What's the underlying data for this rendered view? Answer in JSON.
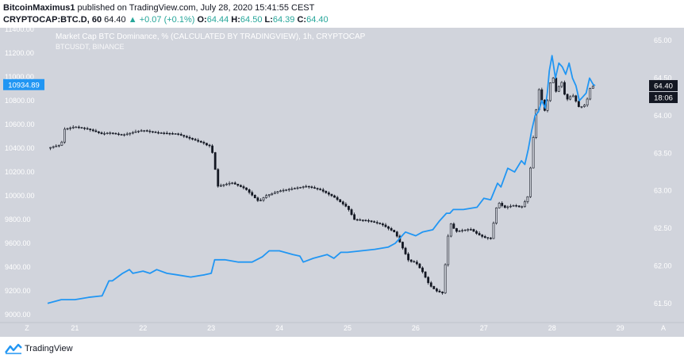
{
  "header": {
    "author": "BitcoinMaximus1",
    "published": "published on TradingView.com, July 28, 2020 15:41:55 CEST",
    "symbol": "CRYPTOCAP:BTC.D, 60",
    "last": "64.40",
    "change_arrow": "▲",
    "change": "+0.07 (+0.1%)",
    "o_label": "O:",
    "o_value": "64.44",
    "h_label": "H:",
    "h_value": "64.50",
    "l_label": "L:",
    "l_value": "64.39",
    "c_label": "C:",
    "c_value": "64.40"
  },
  "chart_data": {
    "type": "line",
    "title": "Market Cap BTC Dominance, % (CALCULATED BY TRADINGVIEW), 1h, CRYPTOCAP",
    "subtitle": "BTCUSDT, BINANCE",
    "x_ticks": [
      "21",
      "22",
      "23",
      "24",
      "25",
      "26",
      "27",
      "28",
      "29"
    ],
    "x_range": [
      20.6,
      29.4
    ],
    "left_axis": {
      "ticks": [
        "11400.00",
        "11200.00",
        "11000.00",
        "10800.00",
        "10600.00",
        "10400.00",
        "10200.00",
        "10000.00",
        "9800.00",
        "9600.00",
        "9400.00",
        "9200.00",
        "9000.00"
      ],
      "range": [
        9000,
        11400
      ]
    },
    "right_axis": {
      "ticks": [
        "65.00",
        "64.50",
        "64.00",
        "63.50",
        "63.00",
        "62.50",
        "62.00",
        "61.50"
      ],
      "range": [
        61.35,
        65.15
      ]
    },
    "labels": {
      "btc_last": "10934.89",
      "dom_last": "64.40",
      "countdown": "18:06"
    },
    "corner_labels": {
      "left": "Z",
      "right": "A"
    },
    "colors": {
      "background": "#d1d4dc",
      "dominance_line": "#2196f3",
      "candles": "#131722",
      "axis_text": "#ffffff",
      "label_blue": "#2196f3",
      "label_dark": "#131722"
    },
    "series": [
      {
        "name": "Market Cap BTC Dominance, % (CALCULATED BY TRADINGVIEW), 1h, CRYPTOCAP",
        "axis": "right",
        "x": [
          20.6,
          20.8,
          21.0,
          21.2,
          21.4,
          21.5,
          21.55,
          21.7,
          21.8,
          21.85,
          22.0,
          22.1,
          22.2,
          22.35,
          22.5,
          22.7,
          22.9,
          23.0,
          23.05,
          23.2,
          23.4,
          23.6,
          23.75,
          23.85,
          24.0,
          24.2,
          24.3,
          24.35,
          24.5,
          24.7,
          24.8,
          24.9,
          25.0,
          25.2,
          25.4,
          25.6,
          25.7,
          25.8,
          25.85,
          26.0,
          26.1,
          26.25,
          26.35,
          26.45,
          26.5,
          26.55,
          26.7,
          26.9,
          27.0,
          27.1,
          27.2,
          27.25,
          27.35,
          27.45,
          27.55,
          27.6,
          27.65,
          27.7,
          27.75,
          27.8,
          27.85,
          27.9,
          27.93,
          27.96,
          28.0,
          28.05,
          28.1,
          28.15,
          28.2,
          28.25,
          28.3,
          28.35,
          28.4,
          28.45,
          28.5,
          28.55,
          28.6,
          28.63
        ],
        "values": [
          61.5,
          61.55,
          61.55,
          61.58,
          61.6,
          61.8,
          61.8,
          61.9,
          61.95,
          61.9,
          61.93,
          61.9,
          61.95,
          61.9,
          61.88,
          61.85,
          61.88,
          61.9,
          62.08,
          62.08,
          62.05,
          62.05,
          62.12,
          62.2,
          62.2,
          62.15,
          62.13,
          62.05,
          62.1,
          62.15,
          62.1,
          62.18,
          62.18,
          62.2,
          62.22,
          62.25,
          62.3,
          62.4,
          62.45,
          62.4,
          62.45,
          62.48,
          62.6,
          62.7,
          62.7,
          62.75,
          62.75,
          62.78,
          62.9,
          62.88,
          63.1,
          63.05,
          63.3,
          63.25,
          63.4,
          63.35,
          63.55,
          63.8,
          64.0,
          64.05,
          64.2,
          64.1,
          64.3,
          64.6,
          64.8,
          64.5,
          64.7,
          64.65,
          64.55,
          64.7,
          64.5,
          64.4,
          64.2,
          64.25,
          64.3,
          64.5,
          64.42,
          64.4
        ]
      },
      {
        "name": "BTCUSDT, BINANCE",
        "axis": "left",
        "x": [
          20.6,
          20.8,
          20.85,
          21.0,
          21.2,
          21.4,
          21.5,
          21.7,
          21.9,
          22.0,
          22.2,
          22.5,
          22.7,
          22.9,
          22.95,
          23.0,
          23.1,
          23.3,
          23.5,
          23.7,
          23.8,
          24.0,
          24.2,
          24.4,
          24.6,
          24.8,
          25.0,
          25.1,
          25.3,
          25.5,
          25.7,
          25.8,
          25.9,
          26.0,
          26.1,
          26.2,
          26.3,
          26.4,
          26.45,
          26.5,
          26.55,
          26.6,
          26.8,
          26.9,
          27.0,
          27.1,
          27.2,
          27.3,
          27.45,
          27.55,
          27.65,
          27.7,
          27.8,
          27.9,
          27.95,
          28.0,
          28.05,
          28.1,
          28.15,
          28.2,
          28.3,
          28.4,
          28.5,
          28.55,
          28.6,
          28.63
        ],
        "values": [
          10400,
          10430,
          10560,
          10580,
          10560,
          10520,
          10530,
          10510,
          10540,
          10550,
          10530,
          10520,
          10480,
          10440,
          10420,
          10420,
          10080,
          10110,
          10060,
          9950,
          10000,
          10040,
          10060,
          10080,
          10050,
          9990,
          9900,
          9800,
          9790,
          9760,
          9690,
          9570,
          9450,
          9440,
          9360,
          9250,
          9200,
          9180,
          9540,
          9780,
          9730,
          9700,
          9720,
          9680,
          9650,
          9640,
          9950,
          9900,
          9920,
          9900,
          10000,
          10350,
          10910,
          10700,
          10850,
          11050,
          10870,
          10920,
          10960,
          10800,
          10850,
          10740,
          10770,
          10900,
          10920,
          10930
        ]
      }
    ],
    "grid": false,
    "legend": "none"
  },
  "footer": {
    "brand": "TradingView"
  }
}
